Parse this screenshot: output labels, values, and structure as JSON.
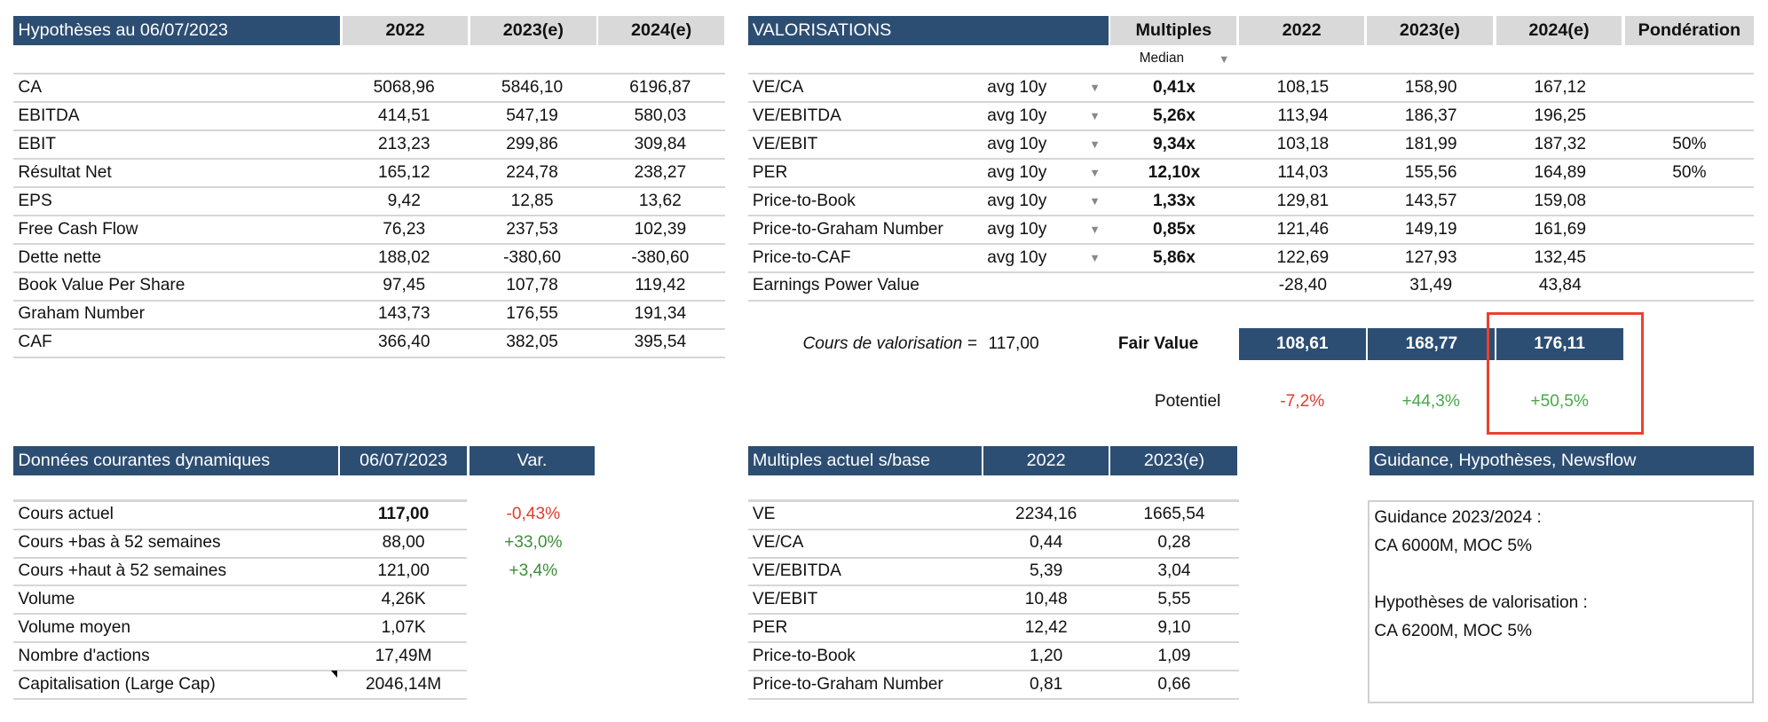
{
  "hypotheses": {
    "title": "Hypothèses au 06/07/2023",
    "columns": [
      "2022",
      "2023(e)",
      "2024(e)"
    ],
    "rows": [
      {
        "label": "CA",
        "values": [
          "5068,96",
          "5846,10",
          "6196,87"
        ]
      },
      {
        "label": "EBITDA",
        "values": [
          "414,51",
          "547,19",
          "580,03"
        ]
      },
      {
        "label": "EBIT",
        "values": [
          "213,23",
          "299,86",
          "309,84"
        ]
      },
      {
        "label": "Résultat Net",
        "values": [
          "165,12",
          "224,78",
          "238,27"
        ]
      },
      {
        "label": "EPS",
        "values": [
          "9,42",
          "12,85",
          "13,62"
        ]
      },
      {
        "label": "Free Cash Flow",
        "values": [
          "76,23",
          "237,53",
          "102,39"
        ]
      },
      {
        "label": "Dette nette",
        "values": [
          "188,02",
          "-380,60",
          "-380,60"
        ]
      },
      {
        "label": "Book Value Per Share",
        "values": [
          "97,45",
          "107,78",
          "119,42"
        ]
      },
      {
        "label": "Graham Number",
        "values": [
          "143,73",
          "176,55",
          "191,34"
        ]
      },
      {
        "label": "CAF",
        "values": [
          "366,40",
          "382,05",
          "395,54"
        ]
      }
    ]
  },
  "valorisations": {
    "title": "VALORISATIONS",
    "columns": [
      "Multiples",
      "2022",
      "2023(e)",
      "2024(e)",
      "Pondération"
    ],
    "multiples_mode": "Median",
    "rows": [
      {
        "label": "VE/CA",
        "period": "avg 10y",
        "multiple": "0,41x",
        "values": [
          "108,15",
          "158,90",
          "167,12"
        ],
        "weight": ""
      },
      {
        "label": "VE/EBITDA",
        "period": "avg 10y",
        "multiple": "5,26x",
        "values": [
          "113,94",
          "186,37",
          "196,25"
        ],
        "weight": ""
      },
      {
        "label": "VE/EBIT",
        "period": "avg 10y",
        "multiple": "9,34x",
        "values": [
          "103,18",
          "181,99",
          "187,32"
        ],
        "weight": "50%"
      },
      {
        "label": "PER",
        "period": "avg 10y",
        "multiple": "12,10x",
        "values": [
          "114,03",
          "155,56",
          "164,89"
        ],
        "weight": "50%"
      },
      {
        "label": "Price-to-Book",
        "period": "avg 10y",
        "multiple": "1,33x",
        "values": [
          "129,81",
          "143,57",
          "159,08"
        ],
        "weight": ""
      },
      {
        "label": "Price-to-Graham Number",
        "period": "avg 10y",
        "multiple": "0,85x",
        "values": [
          "121,46",
          "149,19",
          "161,69"
        ],
        "weight": ""
      },
      {
        "label": "Price-to-CAF",
        "period": "avg 10y",
        "multiple": "5,86x",
        "values": [
          "122,69",
          "127,93",
          "132,45"
        ],
        "weight": ""
      },
      {
        "label": "Earnings Power Value",
        "period": "",
        "multiple": "",
        "values": [
          "-28,40",
          "31,49",
          "43,84"
        ],
        "weight": ""
      }
    ],
    "cours_label": "Cours de valorisation =",
    "cours_value": "117,00",
    "fair_value_label": "Fair Value",
    "fair_values": [
      "108,61",
      "168,77",
      "176,11"
    ],
    "potentiel_label": "Potentiel",
    "potentiels": [
      "-7,2%",
      "+44,3%",
      "+50,5%"
    ],
    "colors": {
      "negative": "#e03c31",
      "positive": "#4aa84a",
      "header": "#2d4e73",
      "highlight": "#e8432e"
    }
  },
  "donnees": {
    "title": "Données courantes dynamiques",
    "date": "06/07/2023",
    "var_label": "Var.",
    "rows": [
      {
        "label": "Cours actuel",
        "value": "117,00",
        "var": "-0,43%"
      },
      {
        "label": "Cours +bas à 52 semaines",
        "value": "88,00",
        "var": "+33,0%"
      },
      {
        "label": "Cours +haut à 52 semaines",
        "value": "121,00",
        "var": "+3,4%"
      },
      {
        "label": "Volume",
        "value": "4,26K",
        "var": ""
      },
      {
        "label": "Volume moyen",
        "value": "1,07K",
        "var": ""
      },
      {
        "label": "Nombre d'actions",
        "value": "17,49M",
        "var": ""
      },
      {
        "label": "Capitalisation (Large Cap)",
        "value": "2046,14M",
        "var": ""
      }
    ]
  },
  "multiples_actuels": {
    "title": "Multiples actuel s/base",
    "columns": [
      "2022",
      "2023(e)"
    ],
    "rows": [
      {
        "label": "VE",
        "values": [
          "2234,16",
          "1665,54"
        ]
      },
      {
        "label": "VE/CA",
        "values": [
          "0,44",
          "0,28"
        ]
      },
      {
        "label": "VE/EBITDA",
        "values": [
          "5,39",
          "3,04"
        ]
      },
      {
        "label": "VE/EBIT",
        "values": [
          "10,48",
          "5,55"
        ]
      },
      {
        "label": "PER",
        "values": [
          "12,42",
          "9,10"
        ]
      },
      {
        "label": "Price-to-Book",
        "values": [
          "1,20",
          "1,09"
        ]
      },
      {
        "label": "Price-to-Graham Number",
        "values": [
          "0,81",
          "0,66"
        ]
      }
    ]
  },
  "guidance": {
    "title": "Guidance, Hypothèses, Newsflow",
    "lines": [
      "Guidance 2023/2024 :",
      "CA 6000M, MOC 5%",
      "",
      "Hypothèses de valorisation :",
      "CA 6200M, MOC 5%"
    ]
  }
}
